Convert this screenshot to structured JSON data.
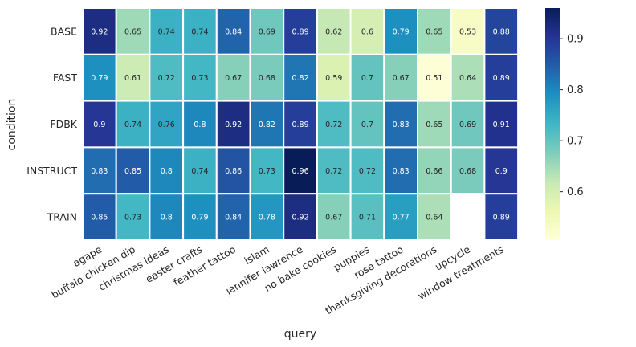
{
  "chart_data": {
    "type": "heatmap",
    "title": "",
    "xlabel": "query",
    "ylabel": "condition",
    "rows": [
      "BASE",
      "FAST",
      "FDBK",
      "INSTRUCT",
      "TRAIN"
    ],
    "columns": [
      "agape",
      "buffalo chicken dip",
      "christmas ideas",
      "easter crafts",
      "feather tattoo",
      "islam",
      "jennifer lawrence",
      "no bake cookies",
      "puppies",
      "rose tattoo",
      "thanksgiving decorations",
      "upcycle",
      "window treatments"
    ],
    "values": [
      [
        0.92,
        0.65,
        0.74,
        0.74,
        0.84,
        0.69,
        0.89,
        0.62,
        0.6,
        0.79,
        0.65,
        0.53,
        0.88
      ],
      [
        0.79,
        0.61,
        0.72,
        0.73,
        0.67,
        0.68,
        0.82,
        0.59,
        0.7,
        0.67,
        0.51,
        0.64,
        0.89
      ],
      [
        0.9,
        0.74,
        0.76,
        0.8,
        0.92,
        0.82,
        0.89,
        0.72,
        0.7,
        0.83,
        0.65,
        0.69,
        0.91
      ],
      [
        0.83,
        0.85,
        0.8,
        0.74,
        0.86,
        0.73,
        0.96,
        0.72,
        0.72,
        0.83,
        0.66,
        0.68,
        0.9
      ],
      [
        0.85,
        0.73,
        0.8,
        0.79,
        0.84,
        0.78,
        0.92,
        0.67,
        0.71,
        0.77,
        0.64,
        null,
        0.89
      ]
    ],
    "value_labels": [
      [
        "0.92",
        "0.65",
        "0.74",
        "0.74",
        "0.84",
        "0.69",
        "0.89",
        "0.62",
        "0.6",
        "0.79",
        "0.65",
        "0.53",
        "0.88"
      ],
      [
        "0.79",
        "0.61",
        "0.72",
        "0.73",
        "0.67",
        "0.68",
        "0.82",
        "0.59",
        "0.7",
        "0.67",
        "0.51",
        "0.64",
        "0.89"
      ],
      [
        "0.9",
        "0.74",
        "0.76",
        "0.8",
        "0.92",
        "0.82",
        "0.89",
        "0.72",
        "0.7",
        "0.83",
        "0.65",
        "0.69",
        "0.91"
      ],
      [
        "0.83",
        "0.85",
        "0.8",
        "0.74",
        "0.86",
        "0.73",
        "0.96",
        "0.72",
        "0.72",
        "0.83",
        "0.66",
        "0.68",
        "0.9"
      ],
      [
        "0.85",
        "0.73",
        "0.8",
        "0.79",
        "0.84",
        "0.78",
        "0.92",
        "0.67",
        "0.71",
        "0.77",
        "0.64",
        "",
        "0.89"
      ]
    ],
    "colorbar": {
      "colormap": "YlGnBu",
      "vmin": 0.505,
      "vmax": 0.96,
      "ticks": [
        0.6,
        0.7,
        0.8,
        0.9
      ],
      "tick_labels": [
        "0.6",
        "0.7",
        "0.8",
        "0.9"
      ]
    },
    "colormap_stops": [
      "#ffffd9",
      "#edf8b1",
      "#c7e9b4",
      "#7fcdbb",
      "#41b6c4",
      "#1d91c0",
      "#225ea8",
      "#253494",
      "#081d58"
    ]
  }
}
